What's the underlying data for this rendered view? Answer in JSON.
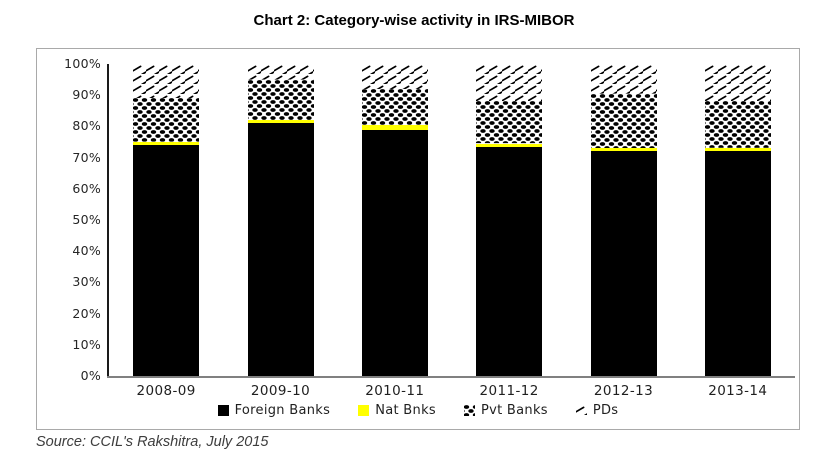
{
  "title": "Chart 2: Category-wise activity in IRS-MIBOR",
  "source": "Source: CCIL's Rakshitra, July 2015",
  "colors": {
    "bar_black": "#000000",
    "nat_yellow": "#ffff00",
    "pattern_ink": "#000000",
    "box_border": "#a9a9a9",
    "axis_gray": "#808080",
    "text": "#1a1a1a"
  },
  "chart_data": {
    "type": "bar",
    "stacked": true,
    "title": "Chart 2: Category-wise activity in IRS-MIBOR",
    "xlabel": "",
    "ylabel": "",
    "ylim": [
      0,
      100
    ],
    "grid": false,
    "legend_position": "bottom",
    "categories": [
      "2008-09",
      "2009-10",
      "2010-11",
      "2011-12",
      "2012-13",
      "2013-14"
    ],
    "yticks": [
      "0%",
      "10%",
      "20%",
      "30%",
      "40%",
      "50%",
      "60%",
      "70%",
      "80%",
      "90%",
      "100%"
    ],
    "series": [
      {
        "name": "Foreign Banks",
        "fill": "solid",
        "color": "#000000",
        "values": [
          74,
          81,
          79,
          73.5,
          72,
          72
        ]
      },
      {
        "name": "Nat Bnks",
        "fill": "solid",
        "color": "#ffff00",
        "values": [
          1,
          1,
          1.5,
          1,
          1,
          1
        ]
      },
      {
        "name": "Pvt Banks",
        "fill": "dots",
        "color": "#000000",
        "values": [
          14,
          13,
          11.5,
          13.5,
          17.5,
          15
        ]
      },
      {
        "name": "PDs",
        "fill": "diagonal-dashes",
        "color": "#000000",
        "values": [
          11,
          5,
          8,
          12,
          9.5,
          12
        ]
      }
    ]
  }
}
